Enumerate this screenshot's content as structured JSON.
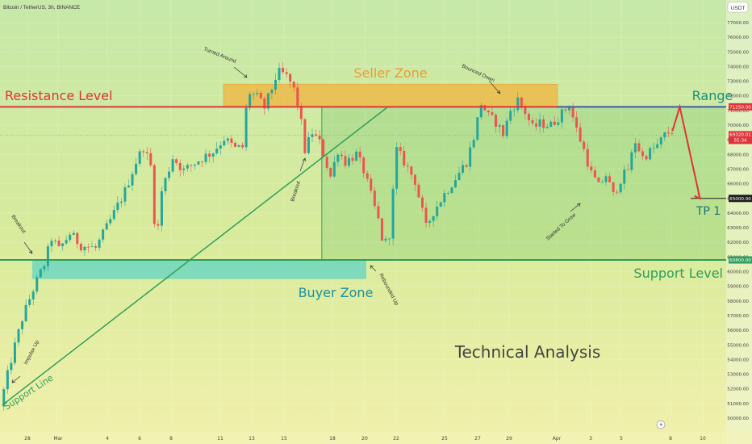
{
  "header": {
    "symbol": "Bitcoin / TetherUS, 3h, BINANCE",
    "currency_badge": "USDT"
  },
  "price_labels": {
    "resistance": "71250.00",
    "current": "69320.01",
    "countdown": "55:34",
    "tp": "65000.00",
    "support": "60800.00"
  },
  "annotations": {
    "resistance_level": "Resistance Level",
    "support_level": "Support Level",
    "seller_zone": "Seller Zone",
    "buyer_zone": "Buyer Zone",
    "range": "Range",
    "tp1": "TP 1",
    "technical_analysis": "Technical Analysis",
    "support_line": "Support Line",
    "turned_around": "Turned Around",
    "bounced_down": "Bounced Down",
    "breakout_1": "Breakout",
    "breakout_2": "Breakout",
    "impulse_up": "Impulse Up",
    "rebounded_up": "Rebounded Up",
    "started_to_grow": "Started To Grow"
  },
  "colors": {
    "resistance": "#e0343a",
    "support": "#2e9e5b",
    "range_line": "#3d5ba8",
    "seller_zone": "#f0b43c",
    "buyer_zone": "#66d6c0",
    "bull": "#26a69a",
    "bear": "#ef5350",
    "projection": "#e0343a"
  },
  "chart_data": {
    "type": "candlestick",
    "symbol": "Bitcoin / TetherUS",
    "timeframe": "3h",
    "exchange": "BINANCE",
    "ylim": [
      50000,
      77000
    ],
    "y_ticks": [
      50000,
      51000,
      52000,
      53000,
      54000,
      55000,
      56000,
      57000,
      58000,
      59000,
      60000,
      61000,
      62000,
      63000,
      64000,
      65000,
      66000,
      67000,
      68000,
      69000,
      70000,
      71000,
      72000,
      73000,
      74000,
      75000,
      76000,
      77000
    ],
    "x_ticks": [
      "28",
      "Mar",
      "4",
      "6",
      "8",
      "11",
      "13",
      "15",
      "18",
      "20",
      "22",
      "25",
      "27",
      "29",
      "Apr",
      "3",
      "5",
      "8",
      "10"
    ],
    "resistance_level": 71250,
    "support_level": 60800,
    "tp_level": 65000,
    "current_price": 69320.01,
    "seller_zone": {
      "low": 71250,
      "high": 72800
    },
    "buyer_zone": {
      "low": 59500,
      "high": 60800
    },
    "price_path": [
      [
        0,
        50800
      ],
      [
        3,
        54000
      ],
      [
        6,
        56800
      ],
      [
        9,
        58800
      ],
      [
        12,
        60500
      ],
      [
        14,
        62300
      ],
      [
        16,
        61500
      ],
      [
        19,
        62600
      ],
      [
        22,
        61800
      ],
      [
        26,
        61600
      ],
      [
        30,
        63500
      ],
      [
        34,
        65500
      ],
      [
        37,
        67500
      ],
      [
        39,
        68500
      ],
      [
        41,
        67200
      ],
      [
        42.5,
        61800
      ],
      [
        44,
        65500
      ],
      [
        47,
        67800
      ],
      [
        50,
        66900
      ],
      [
        54,
        67600
      ],
      [
        58,
        68200
      ],
      [
        61,
        69100
      ],
      [
        64,
        68400
      ],
      [
        66,
        68500
      ],
      [
        67.5,
        72300
      ],
      [
        70,
        71900
      ],
      [
        72,
        71200
      ],
      [
        74,
        72500
      ],
      [
        75.5,
        73600
      ],
      [
        77,
        73500
      ],
      [
        78.5,
        73200
      ],
      [
        80,
        72400
      ],
      [
        81.5,
        71000
      ],
      [
        83,
        68300
      ],
      [
        85,
        69500
      ],
      [
        87,
        68800
      ],
      [
        90,
        66500
      ],
      [
        92,
        68300
      ],
      [
        94,
        67500
      ],
      [
        97,
        68000
      ],
      [
        99,
        66900
      ],
      [
        101,
        65200
      ],
      [
        103,
        63500
      ],
      [
        104.5,
        61700
      ],
      [
        106,
        62600
      ],
      [
        108,
        68300
      ],
      [
        110,
        67500
      ],
      [
        113,
        66200
      ],
      [
        116,
        63000
      ],
      [
        118,
        64100
      ],
      [
        121,
        65300
      ],
      [
        124,
        66400
      ],
      [
        127,
        67500
      ],
      [
        129,
        69200
      ],
      [
        131,
        71500
      ],
      [
        133,
        70600
      ],
      [
        135,
        70200
      ],
      [
        137,
        69400
      ],
      [
        139,
        71000
      ],
      [
        141,
        71700
      ],
      [
        143,
        70900
      ],
      [
        145,
        69800
      ],
      [
        147,
        70100
      ],
      [
        150,
        70000
      ],
      [
        153,
        70800
      ],
      [
        155,
        71400
      ],
      [
        157,
        69700
      ],
      [
        159,
        68300
      ],
      [
        161,
        66700
      ],
      [
        163,
        65800
      ],
      [
        165,
        66600
      ],
      [
        167,
        65200
      ],
      [
        169,
        66300
      ],
      [
        171,
        67000
      ],
      [
        173,
        68900
      ],
      [
        175,
        67800
      ],
      [
        177,
        68200
      ],
      [
        179,
        68600
      ],
      [
        181,
        69300
      ],
      [
        182.5,
        69600
      ]
    ],
    "projection": [
      [
        182.5,
        69600
      ],
      [
        184.5,
        71250
      ],
      [
        190,
        65000
      ]
    ],
    "support_line": [
      [
        0,
        50900
      ],
      [
        105,
        71250
      ]
    ],
    "range_box": {
      "x_from": 87,
      "x_to": 197,
      "low": 60800,
      "high": 71250
    }
  }
}
